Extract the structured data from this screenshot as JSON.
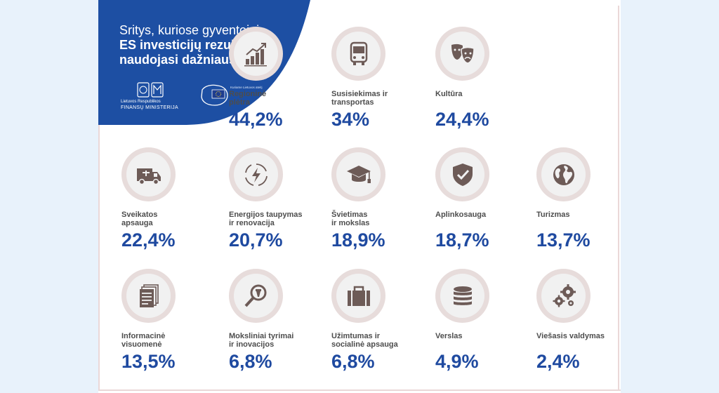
{
  "header": {
    "title_line1": "Sritys, kuriose gyventojai",
    "title_line2": "ES investicijų rezultatais",
    "title_line3": "naudojasi dažniausiai"
  },
  "logos": {
    "ministry_line1": "Lietuvos Respublikos",
    "ministry_line2": "FINANSŲ MINISTERIJA",
    "eu_text": "Kuriame Lietuvos ateitį"
  },
  "items": [
    {
      "label": "Regioninė\nplėtra",
      "value": "44,2%",
      "icon": "chart-growth-icon"
    },
    {
      "label": "Susisiekimas ir\ntransportas",
      "value": "34%",
      "icon": "bus-icon"
    },
    {
      "label": "Kultūra",
      "value": "24,4%",
      "icon": "theater-masks-icon"
    },
    {
      "label": "Sveikatos\napsauga",
      "value": "22,4%",
      "icon": "ambulance-icon"
    },
    {
      "label": "Energijos taupymas\nir renovacija",
      "value": "20,7%",
      "icon": "energy-icon"
    },
    {
      "label": "Švietimas\nir mokslas",
      "value": "18,9%",
      "icon": "graduation-cap-icon"
    },
    {
      "label": "Aplinkosauga",
      "value": "18,7%",
      "icon": "shield-check-icon"
    },
    {
      "label": "Turizmas",
      "value": "13,7%",
      "icon": "globe-icon"
    },
    {
      "label": "Informacinė\nvisuomenė",
      "value": "13,5%",
      "icon": "documents-icon"
    },
    {
      "label": "Moksliniai tyrimai\nir inovacijos",
      "value": "6,8%",
      "icon": "magnifier-icon"
    },
    {
      "label": "Užimtumas ir\nsocialinė apsauga",
      "value": "6,8%",
      "icon": "briefcase-icon"
    },
    {
      "label": "Verslas",
      "value": "4,9%",
      "icon": "coins-icon"
    },
    {
      "label": "Viešasis valdymas",
      "value": "2,4%",
      "icon": "gears-icon"
    }
  ],
  "colors": {
    "header_blue": "#1d4fa3",
    "value_blue": "#1f4aa0",
    "circle_outer": "#e7dcdb",
    "icon_brown": "#6d5b57"
  }
}
